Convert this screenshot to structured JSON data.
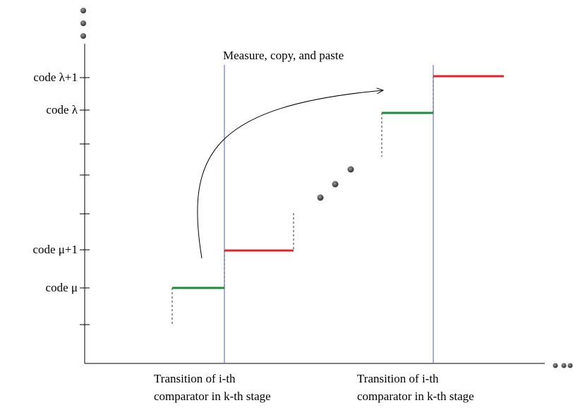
{
  "title": "Measure, copy, and paste",
  "y_labels": {
    "lambda_plus_1": "code λ+1",
    "lambda": "code  λ",
    "mu_plus_1": "code  μ+1",
    "mu": "code  μ"
  },
  "x_labels": {
    "left": [
      "Transition of i-th",
      "comparator  in k-th stage"
    ],
    "right": [
      "Transition of i-th",
      "comparator in k-th stage"
    ]
  },
  "colors": {
    "green_step": "#1e8c3a",
    "red_step": "#e3232b",
    "transition_line": "#4a5fc1",
    "axis": "#000000",
    "dots": "#555555"
  }
}
